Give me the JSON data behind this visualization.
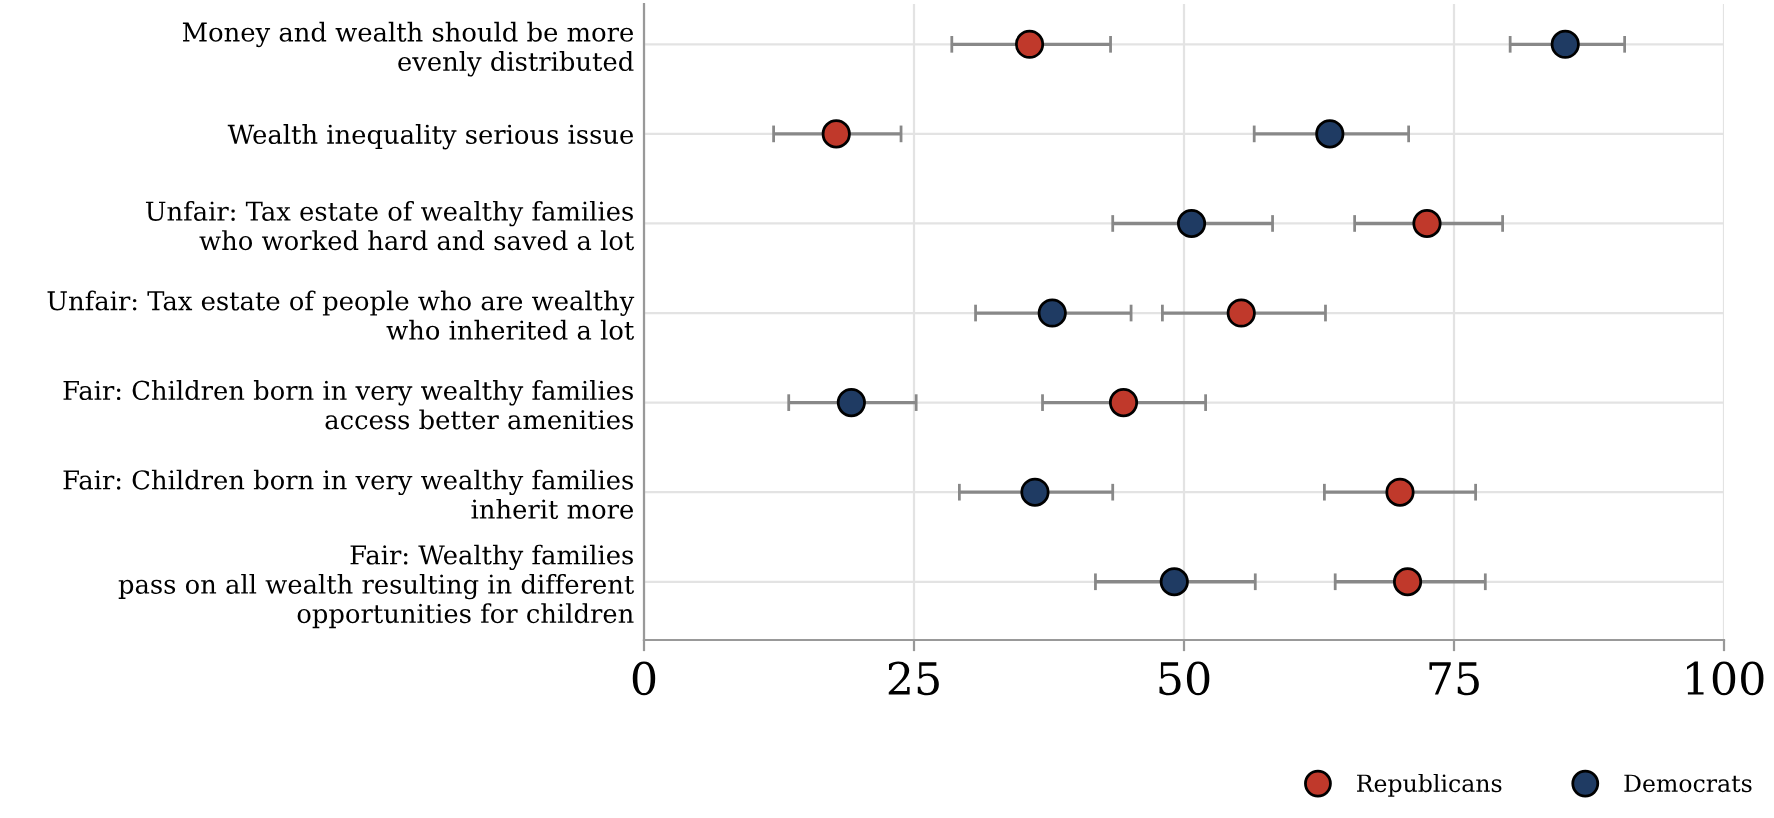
{
  "chart_data": {
    "type": "scatter",
    "orientation": "horizontal",
    "categories": [
      "Money and wealth should be more\nevenly distributed",
      "Wealth inequality serious issue",
      "Unfair: Tax estate of wealthy families\nwho worked hard and saved a lot",
      "Unfair: Tax estate of people who are wealthy\nwho inherited a lot",
      "Fair: Children born in very wealthy families\naccess better amenities",
      "Fair: Children born in very wealthy families\ninherit more",
      "Fair: Wealthy families\npass on all wealth resulting in different\nopportunities for children"
    ],
    "series": [
      {
        "name": "Republicans",
        "color": "#c0392b",
        "values": [
          35.7,
          17.8,
          72.5,
          55.3,
          44.4,
          70.0,
          70.7
        ],
        "errors": [
          [
            28.5,
            43.2
          ],
          [
            12.0,
            23.8
          ],
          [
            65.8,
            79.5
          ],
          [
            48.0,
            63.1
          ],
          [
            36.9,
            52.0
          ],
          [
            63.0,
            77.0
          ],
          [
            64.0,
            77.9
          ]
        ]
      },
      {
        "name": "Democrats",
        "color": "#1f3b63",
        "values": [
          85.3,
          63.5,
          50.7,
          37.8,
          19.2,
          36.2,
          49.1
        ],
        "errors": [
          [
            80.2,
            90.8
          ],
          [
            56.5,
            70.8
          ],
          [
            43.4,
            58.2
          ],
          [
            30.7,
            45.1
          ],
          [
            13.4,
            25.2
          ],
          [
            29.2,
            43.4
          ],
          [
            41.8,
            56.6
          ]
        ]
      }
    ],
    "xlim": [
      0,
      100
    ],
    "xticks": [
      0,
      25,
      50,
      75,
      100
    ],
    "grid": true,
    "legend": "bottom right",
    "marker": "circle"
  }
}
